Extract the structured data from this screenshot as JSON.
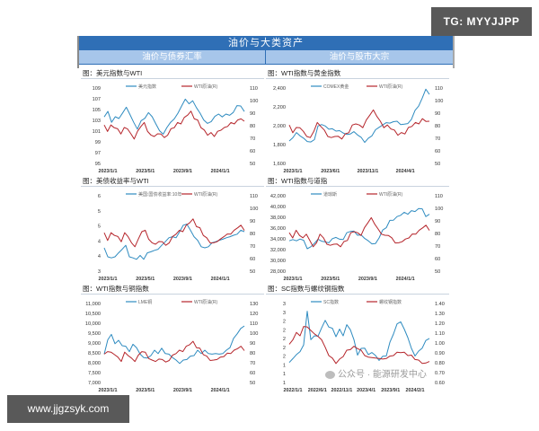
{
  "watermarks": {
    "top_right": "TG: MYYJJPP",
    "bottom_left": "www.jjgzsyk.com",
    "wechat": "公众号 · 能源研发中心"
  },
  "header": {
    "title": "油价与大类资产",
    "left_section": "油价与债券汇率",
    "right_section": "油价与股市大宗"
  },
  "colors": {
    "blue_series": "#2e8bc0",
    "red_series": "#b5252b",
    "header_blue": "#2f6fb6",
    "subheader_blue": "#a7c6ea"
  },
  "chart_data": [
    {
      "id": "dxy_wti",
      "type": "line",
      "title": "图：美元指数与WTI",
      "x_ticks": [
        "2023/1/1",
        "2023/5/1",
        "2023/9/1",
        "2024/1/1"
      ],
      "y_left": {
        "ticks": [
          "95",
          "97",
          "99",
          "101",
          "103",
          "105",
          "107",
          "109"
        ],
        "min": 95,
        "max": 109
      },
      "y_right": {
        "ticks": [
          "50",
          "60",
          "70",
          "80",
          "90",
          "100",
          "110"
        ],
        "min": 50,
        "max": 110
      },
      "series": [
        {
          "name": "美元指数",
          "axis": "left",
          "color": "#2e8bc0",
          "values": [
            103.5,
            104.8,
            102.5,
            103.8,
            103.2,
            104.5,
            105.3,
            104.2,
            102.5,
            101.5,
            102.8,
            103.5,
            104.3,
            103.8,
            102.2,
            101.2,
            100.3,
            101.8,
            102.5,
            103.4,
            104.2,
            105.8,
            106.8,
            106.2,
            106.5,
            105.5,
            104.2,
            103.2,
            102.3,
            102.9,
            103.6,
            104.3,
            103.5,
            104.3,
            103.8,
            104.6,
            105.6,
            105.8,
            104.5
          ]
        },
        {
          "name": "WTI原油(R)",
          "axis": "right",
          "color": "#b5252b",
          "values": [
            80,
            76,
            80,
            79,
            77,
            74,
            78,
            78,
            73,
            70,
            75,
            80,
            82,
            76,
            72,
            72,
            73,
            74,
            70,
            73,
            77,
            79,
            82,
            82,
            86,
            89,
            91,
            86,
            84,
            79,
            76,
            73,
            74,
            72,
            75,
            77,
            78,
            80,
            82,
            82,
            84,
            86,
            83
          ]
        }
      ]
    },
    {
      "id": "gold_wti",
      "type": "line",
      "title": "图：WTI指数与黄金指数",
      "x_ticks": [
        "2023/1/1",
        "2023/6/1",
        "2023/11/1",
        "2024/4/1"
      ],
      "y_left": {
        "ticks": [
          "1,600",
          "1,800",
          "2,000",
          "2,200",
          "2,400"
        ],
        "min": 1600,
        "max": 2400
      },
      "y_right": {
        "ticks": [
          "50",
          "60",
          "70",
          "80",
          "90",
          "100",
          "110"
        ],
        "min": 50,
        "max": 110
      },
      "series": [
        {
          "name": "COMEX黄金",
          "axis": "left",
          "color": "#2e8bc0",
          "values": [
            1830,
            1880,
            1920,
            1900,
            1860,
            1840,
            1820,
            1860,
            1990,
            2020,
            1990,
            1970,
            1960,
            1950,
            1940,
            1930,
            1900,
            1920,
            1930,
            1910,
            1870,
            1830,
            1860,
            1900,
            1950,
            1990,
            2000,
            2040,
            2020,
            2050,
            2040,
            2020,
            2010,
            2030,
            2060,
            2170,
            2200,
            2300,
            2380,
            2340
          ]
        },
        {
          "name": "WTI原油(R)",
          "axis": "right",
          "color": "#b5252b",
          "values": [
            80,
            75,
            78,
            79,
            75,
            72,
            70,
            76,
            82,
            80,
            76,
            72,
            70,
            72,
            71,
            70,
            73,
            75,
            80,
            82,
            80,
            79,
            84,
            89,
            92,
            88,
            83,
            79,
            80,
            78,
            76,
            73,
            74,
            74,
            78,
            80,
            82,
            82,
            85,
            84,
            83
          ]
        }
      ]
    },
    {
      "id": "ust10y_wti",
      "type": "line",
      "title": "图：美债收益率与WTI",
      "x_ticks": [
        "2023/1/1",
        "2023/5/1",
        "2023/9/1",
        "2024/1/1"
      ],
      "y_left": {
        "ticks": [
          "3",
          "4",
          "4",
          "5",
          "5",
          "6"
        ],
        "min": 3,
        "max": 6
      },
      "y_right": {
        "ticks": [
          "50",
          "60",
          "70",
          "80",
          "90",
          "100",
          "110"
        ],
        "min": 50,
        "max": 110
      },
      "series": [
        {
          "name": "美国:国债收益率:10年",
          "axis": "left",
          "color": "#2e8bc0",
          "values": [
            3.9,
            3.6,
            3.5,
            3.6,
            3.7,
            3.9,
            4.0,
            3.6,
            3.5,
            3.5,
            3.6,
            3.5,
            3.7,
            3.8,
            3.8,
            3.9,
            4.0,
            4.2,
            4.3,
            4.4,
            4.3,
            4.6,
            4.8,
            4.9,
            4.6,
            4.4,
            4.2,
            4.0,
            3.9,
            4.0,
            4.1,
            4.2,
            4.2,
            4.3,
            4.3,
            4.4,
            4.4,
            4.5,
            4.6,
            4.6
          ]
        },
        {
          "name": "WTI原油(R)",
          "axis": "right",
          "color": "#b5252b",
          "values": [
            80,
            75,
            80,
            79,
            77,
            74,
            80,
            78,
            72,
            70,
            75,
            82,
            82,
            76,
            72,
            72,
            73,
            74,
            70,
            73,
            77,
            80,
            82,
            82,
            86,
            89,
            91,
            86,
            84,
            79,
            76,
            73,
            72,
            74,
            75,
            78,
            79,
            80,
            82,
            85,
            86,
            83
          ]
        }
      ]
    },
    {
      "id": "dow_wti",
      "type": "line",
      "title": "图：WTI指数与道指",
      "x_ticks": [
        "2023/1/1",
        "2023/5/1",
        "2023/9/1",
        "2024/1/1"
      ],
      "y_left": {
        "ticks": [
          "28,000",
          "30,000",
          "32,000",
          "34,000",
          "36,000",
          "38,000",
          "40,000",
          "42,000"
        ],
        "min": 28000,
        "max": 42000
      },
      "y_right": {
        "ticks": [
          "50",
          "60",
          "70",
          "80",
          "90",
          "100",
          "110"
        ],
        "min": 50,
        "max": 110
      },
      "series": [
        {
          "name": "道琼斯",
          "axis": "left",
          "color": "#2e8bc0",
          "values": [
            33500,
            34000,
            33500,
            34100,
            33600,
            32300,
            32400,
            33300,
            33800,
            33700,
            33300,
            33400,
            33900,
            34400,
            33800,
            34000,
            35000,
            35500,
            35300,
            34800,
            34600,
            34200,
            33500,
            33200,
            33000,
            34300,
            35500,
            36200,
            37300,
            37600,
            38000,
            38500,
            38800,
            38700,
            39100,
            39200,
            39500,
            39700,
            38000,
            38700
          ]
        },
        {
          "name": "WTI原油(R)",
          "axis": "right",
          "color": "#b5252b",
          "values": [
            80,
            77,
            82,
            79,
            76,
            80,
            74,
            70,
            72,
            80,
            76,
            72,
            70,
            72,
            71,
            70,
            73,
            75,
            80,
            82,
            80,
            79,
            84,
            89,
            92,
            88,
            83,
            80,
            78,
            79,
            76,
            73,
            72,
            74,
            75,
            77,
            79,
            80,
            82,
            85,
            86,
            83
          ]
        }
      ]
    },
    {
      "id": "copper_wti",
      "type": "line",
      "title": "图：WTI指数与铜指数",
      "x_ticks": [
        "2023/1/1",
        "2023/5/1",
        "2023/9/1",
        "2024/1/1"
      ],
      "y_left": {
        "ticks": [
          "7,000",
          "7,500",
          "8,000",
          "8,500",
          "9,000",
          "9,500",
          "10,000",
          "10,500",
          "11,000"
        ],
        "min": 7000,
        "max": 11000
      },
      "y_right": {
        "ticks": [
          "50",
          "60",
          "70",
          "80",
          "90",
          "100",
          "110",
          "120",
          "130"
        ],
        "min": 50,
        "max": 130
      },
      "series": [
        {
          "name": "LME铜",
          "axis": "left",
          "color": "#2e8bc0",
          "values": [
            8400,
            9200,
            9400,
            9000,
            9100,
            8900,
            8800,
            8600,
            8900,
            8800,
            8400,
            8300,
            8200,
            8400,
            8600,
            8500,
            8700,
            8500,
            8400,
            8300,
            8100,
            8000,
            8100,
            8200,
            8300,
            8400,
            8600,
            8500,
            8600,
            8500,
            8400,
            8500,
            8400,
            8500,
            8600,
            8800,
            9200,
            9500,
            9700,
            9900
          ]
        },
        {
          "name": "WTI原油(R)",
          "axis": "right",
          "color": "#b5252b",
          "values": [
            78,
            82,
            80,
            79,
            75,
            72,
            80,
            78,
            74,
            72,
            77,
            82,
            80,
            75,
            72,
            72,
            73,
            74,
            70,
            73,
            77,
            80,
            82,
            82,
            86,
            89,
            91,
            86,
            84,
            79,
            76,
            73,
            72,
            74,
            75,
            77,
            79,
            80,
            82,
            85,
            86,
            83
          ]
        }
      ]
    },
    {
      "id": "sc_rebar",
      "type": "line",
      "title": "图：SC指数与螺纹钢指数",
      "x_ticks": [
        "2022/1/1",
        "2022/6/1",
        "2022/11/1",
        "2023/4/1",
        "2023/9/1",
        "2024/2/1"
      ],
      "y_left": {
        "ticks": [
          "1",
          "1",
          "1",
          "2",
          "2",
          "2",
          "2",
          "2",
          "3",
          "3"
        ],
        "min": 0,
        "max": 9
      },
      "y_right": {
        "ticks": [
          "0.60",
          "0.70",
          "0.80",
          "0.90",
          "1.00",
          "1.10",
          "1.20",
          "1.30",
          "1.40"
        ],
        "min": 0.6,
        "max": 1.4
      },
      "series": [
        {
          "name": "SC指数",
          "axis": "left",
          "color": "#2e8bc0",
          "values": [
            2.2,
            2.8,
            3.1,
            3.6,
            4.2,
            8.2,
            4.8,
            5.4,
            5.2,
            6.3,
            7.0,
            6.4,
            6.1,
            5.3,
            6.0,
            5.4,
            6.5,
            6.1,
            4.8,
            3.2,
            3.8,
            4.0,
            3.1,
            3.5,
            3.0,
            2.6,
            2.9,
            3.1,
            4.5,
            5.6,
            6.6,
            7.0,
            6.0,
            5.2,
            3.8,
            3.1,
            3.5,
            4.0,
            4.7,
            5.1
          ]
        },
        {
          "name": "螺纹钢指数",
          "axis": "right",
          "color": "#b5252b",
          "values": [
            0.98,
            1.04,
            1.1,
            1.08,
            1.16,
            1.17,
            1.12,
            1.1,
            1.06,
            1.04,
            0.95,
            0.88,
            0.84,
            0.8,
            0.83,
            0.87,
            0.92,
            0.94,
            0.96,
            0.95,
            0.92,
            0.88,
            0.85,
            0.86,
            0.84,
            0.85,
            0.83,
            0.85,
            0.86,
            0.88,
            0.9,
            0.91,
            0.9,
            0.88,
            0.87,
            0.84,
            0.82,
            0.8,
            0.79,
            0.82
          ]
        }
      ]
    }
  ]
}
